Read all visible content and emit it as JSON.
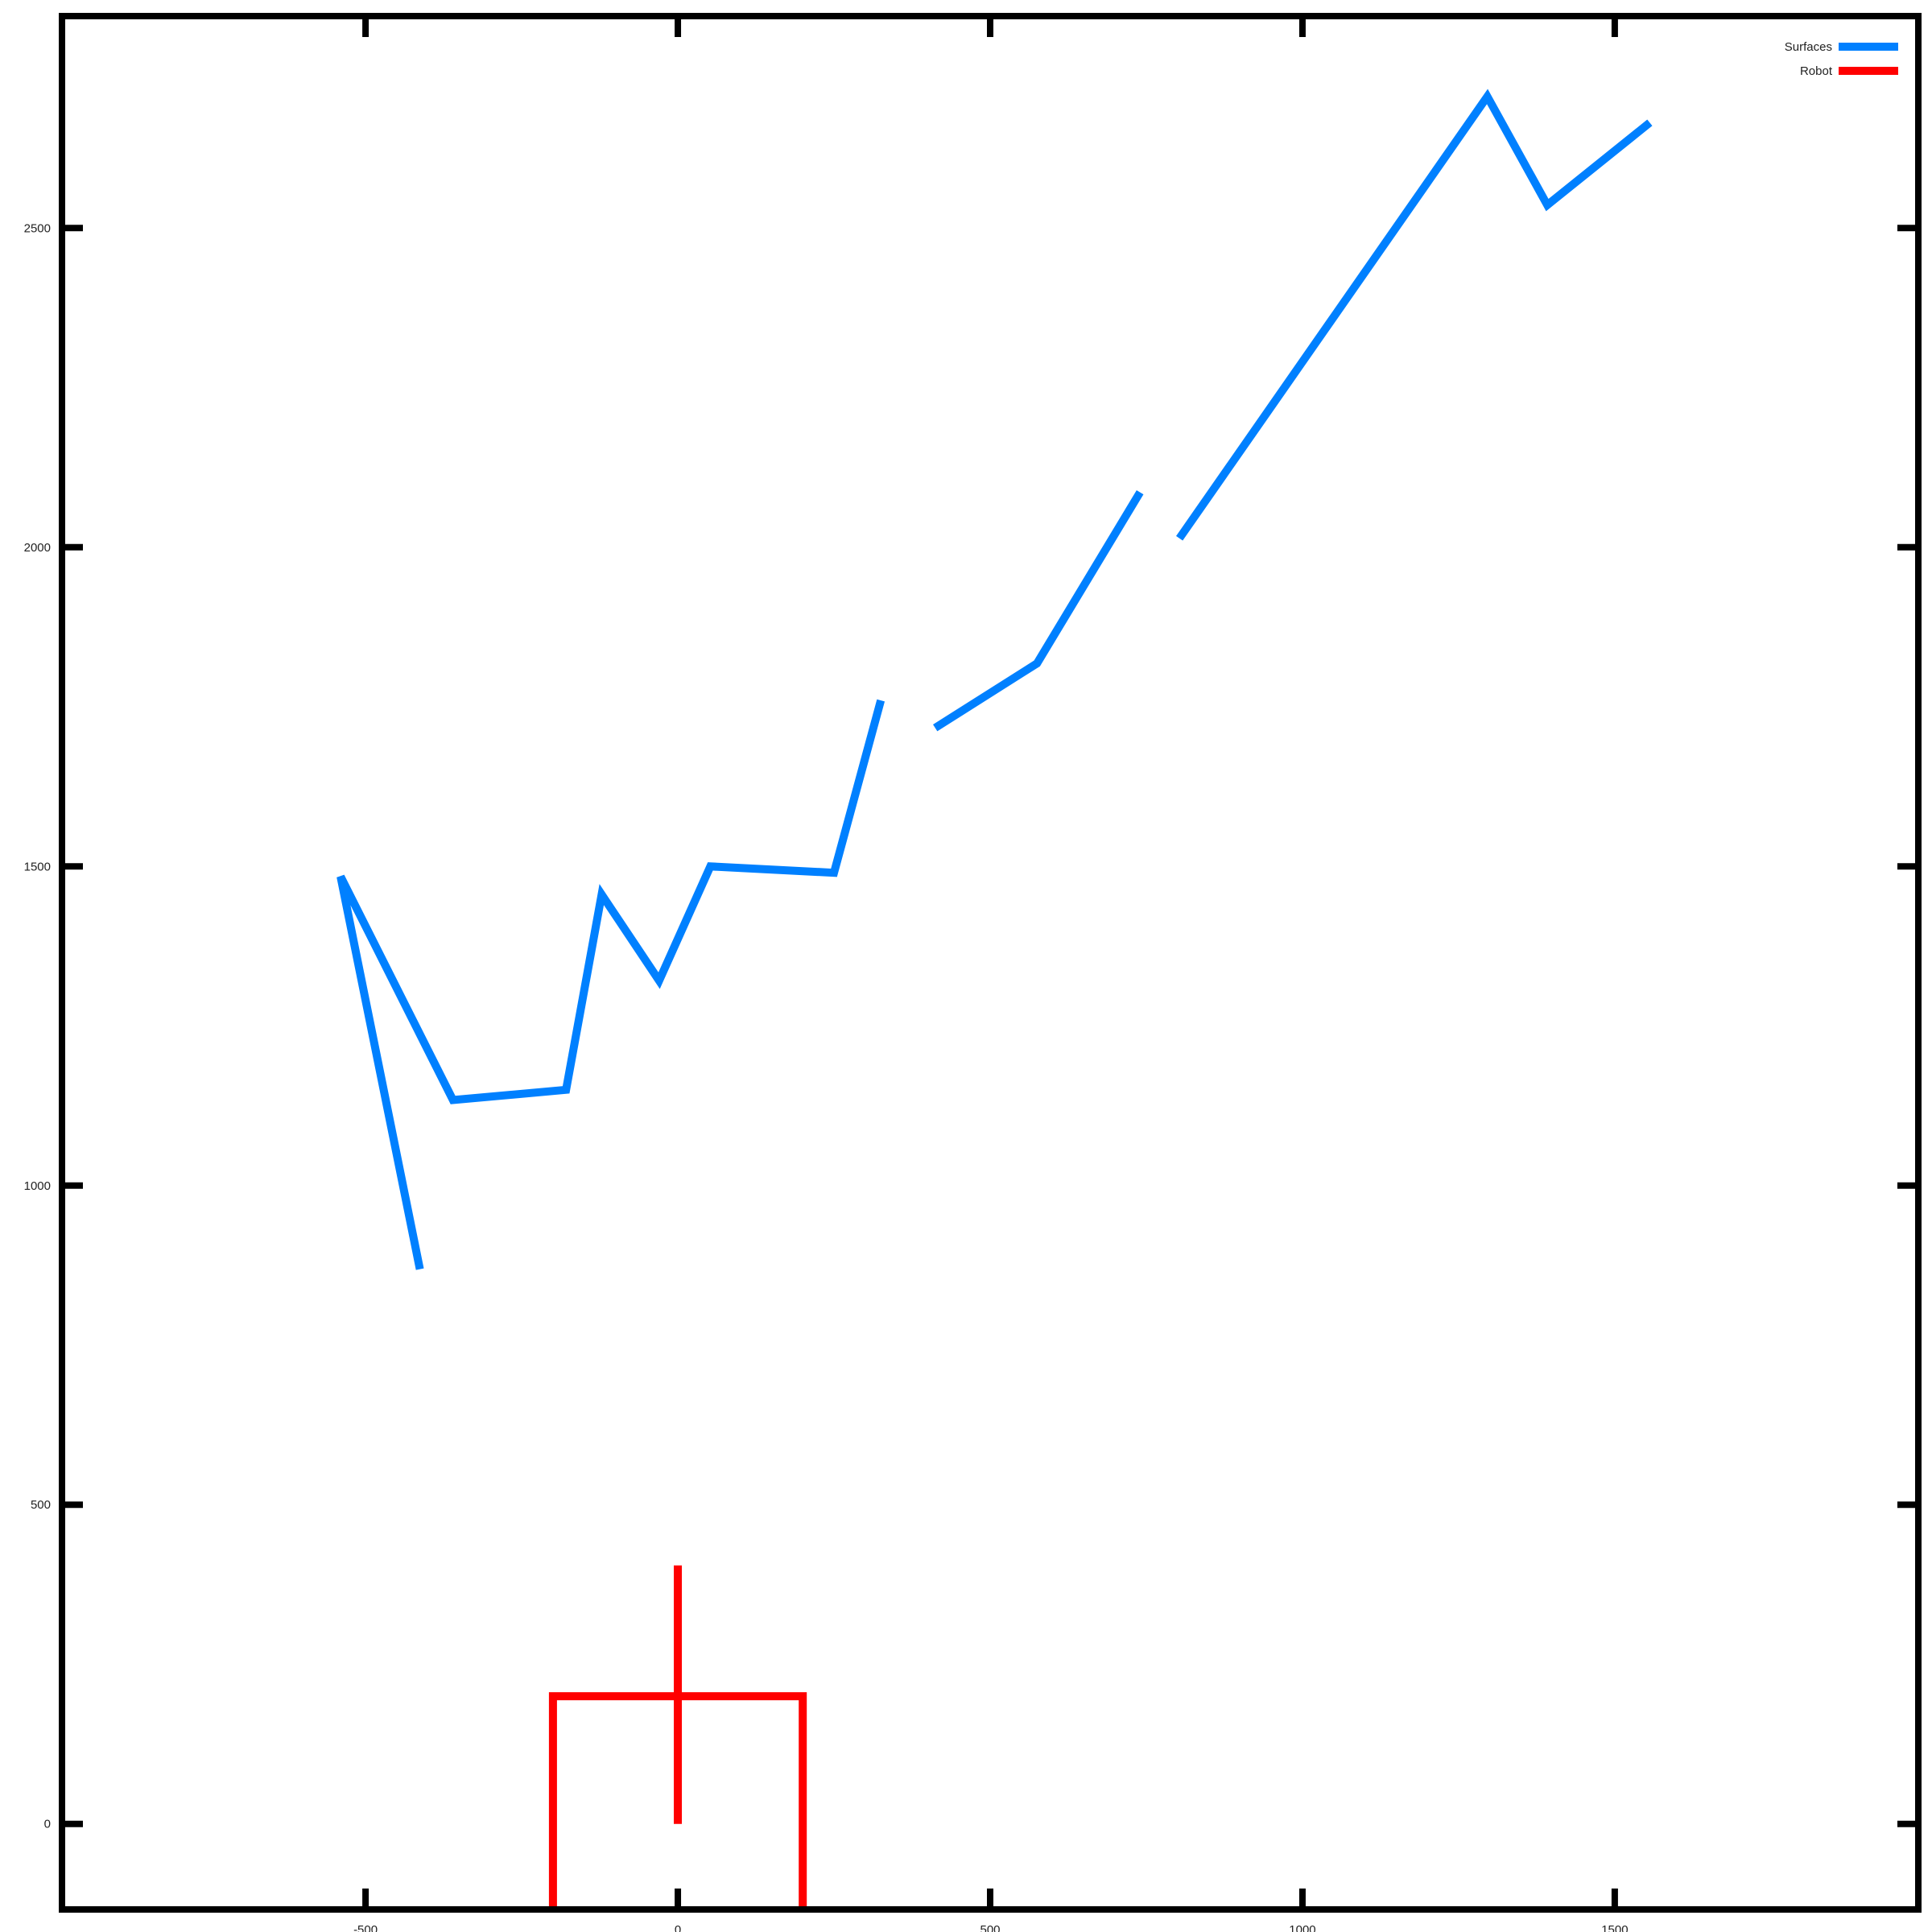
{
  "chart_data": {
    "type": "line",
    "title": "",
    "xlabel": "",
    "ylabel": "",
    "xlim": [
      -986,
      1986
    ],
    "ylim": [
      -134,
      2832
    ],
    "x_ticks": [
      -500,
      0,
      500,
      1000,
      1500
    ],
    "x_tick_labels": [
      "-500",
      "0",
      "500",
      "1000",
      "1500"
    ],
    "y_ticks": [
      0,
      500,
      1000,
      1500,
      2000,
      2500
    ],
    "y_tick_labels": [
      "0",
      "500",
      "1000",
      "1500",
      "2000",
      "2500"
    ],
    "grid": false,
    "legend_position": "top-right",
    "series": [
      {
        "name": "Surfaces",
        "color": "#0080ff",
        "segments": [
          [
            [
              -413,
              869
            ],
            [
              -540,
              1484
            ],
            [
              -360,
              1134
            ],
            [
              -179,
              1150
            ],
            [
              -122,
              1456
            ],
            [
              -30,
              1321
            ],
            [
              52,
              1500
            ],
            [
              250,
              1490
            ],
            [
              325,
              1760
            ]
          ],
          [
            [
              412,
              1717
            ],
            [
              575,
              1818
            ],
            [
              740,
              2086
            ]
          ],
          [
            [
              803,
              2014
            ],
            [
              1296,
              2706
            ],
            [
              1392,
              2536
            ],
            [
              1556,
              2665
            ]
          ]
        ]
      },
      {
        "name": "Robot",
        "color": "#ff0000",
        "segments": [
          [
            [
              -200,
              -134
            ],
            [
              -200,
              200
            ],
            [
              200,
              200
            ],
            [
              200,
              -134
            ]
          ],
          [
            [
              0,
              0
            ],
            [
              0,
              405
            ]
          ]
        ]
      }
    ]
  }
}
